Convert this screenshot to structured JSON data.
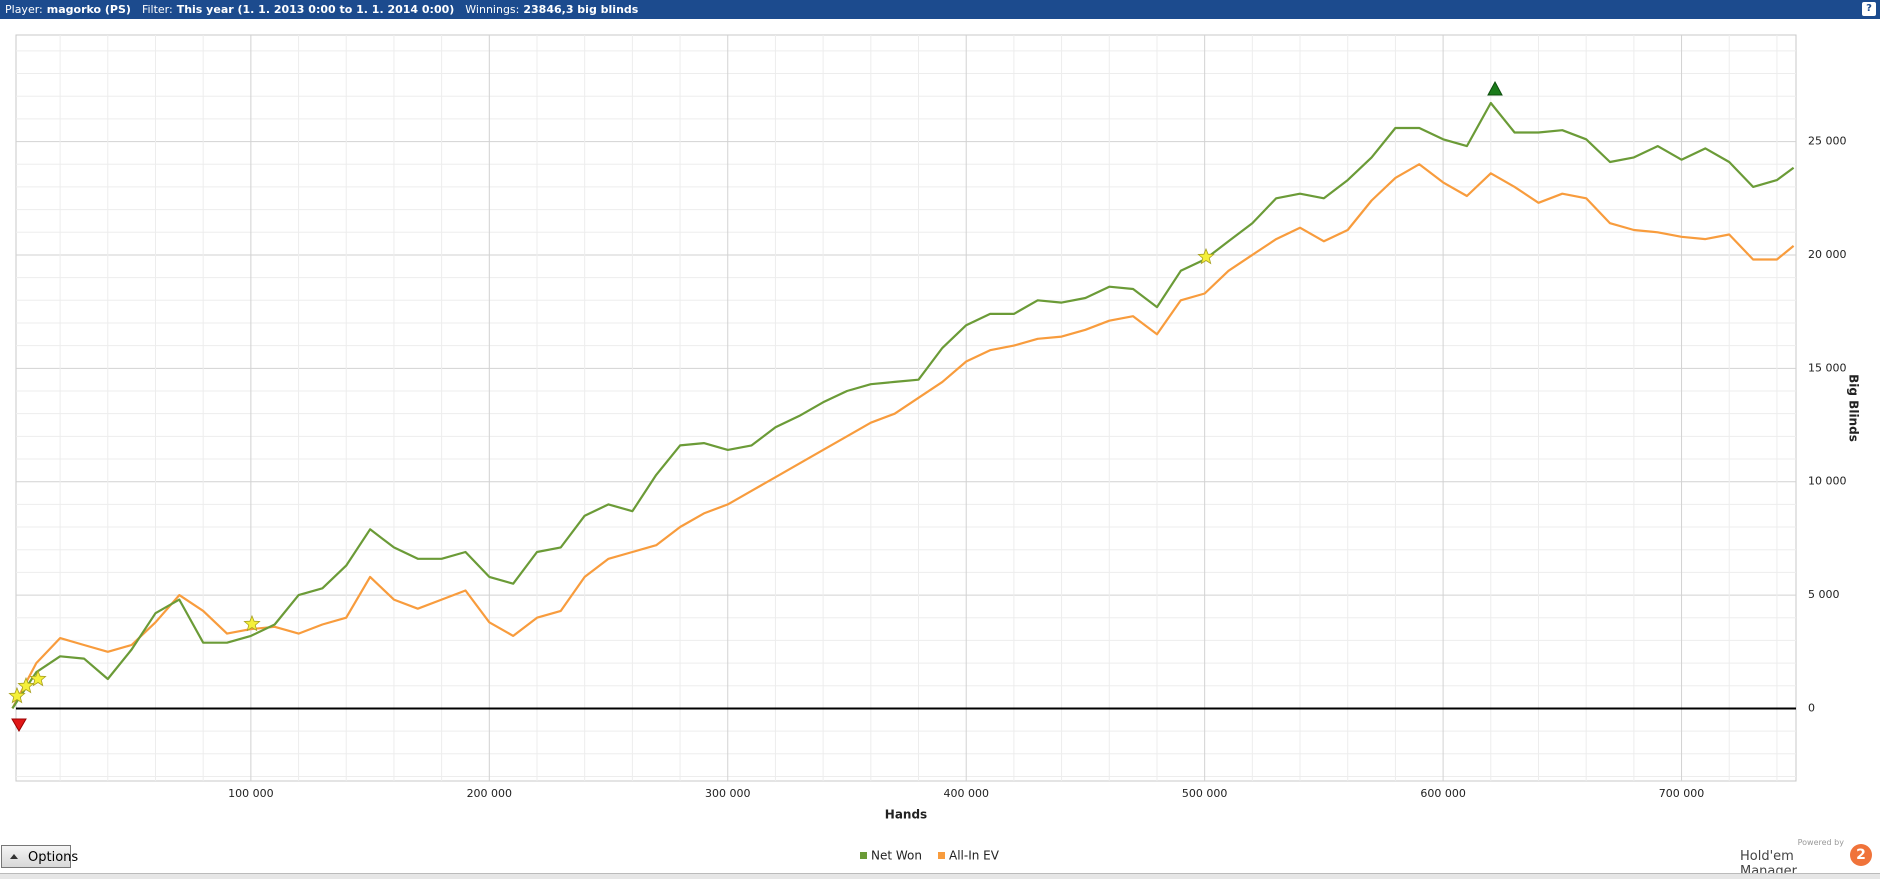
{
  "header": [
    {
      "label": "Player:",
      "value": "magorko (PS)"
    },
    {
      "label": "Filter:",
      "value": "This year (1. 1. 2013 0:00 to 1. 1. 2014 0:00)"
    },
    {
      "label": "Winnings:",
      "value": "23846,3 big blinds"
    }
  ],
  "help": "?",
  "options_button": "Options",
  "branding": {
    "powered_by": "Powered by",
    "product": "Hold'em Manager",
    "badge": "2"
  },
  "chart_data": {
    "type": "line",
    "x_label": "Hands",
    "y_label": "Big Blinds",
    "x": [
      0,
      10000,
      20000,
      30000,
      40000,
      50000,
      60000,
      70000,
      80000,
      90000,
      100000,
      110000,
      120000,
      130000,
      140000,
      150000,
      160000,
      170000,
      180000,
      190000,
      200000,
      210000,
      220000,
      230000,
      240000,
      250000,
      260000,
      270000,
      280000,
      290000,
      300000,
      310000,
      320000,
      330000,
      340000,
      350000,
      360000,
      370000,
      380000,
      390000,
      400000,
      410000,
      420000,
      430000,
      440000,
      450000,
      460000,
      470000,
      480000,
      490000,
      500000,
      510000,
      520000,
      530000,
      540000,
      550000,
      560000,
      570000,
      580000,
      590000,
      600000,
      610000,
      620000,
      630000,
      640000,
      650000,
      660000,
      670000,
      680000,
      690000,
      700000,
      710000,
      720000,
      730000,
      740000,
      747000
    ],
    "series": [
      {
        "name": "Net Won",
        "color": "#6b9b37",
        "values": [
          0,
          1600,
          2300,
          2200,
          1300,
          2600,
          4200,
          4800,
          2900,
          2900,
          3200,
          3700,
          5000,
          5300,
          6300,
          7900,
          7100,
          6600,
          6600,
          6900,
          5800,
          5500,
          6900,
          7100,
          8500,
          9000,
          8700,
          10300,
          11600,
          11700,
          11400,
          11600,
          12400,
          12900,
          13500,
          14000,
          14300,
          14400,
          14500,
          15900,
          16900,
          17400,
          17400,
          18000,
          17900,
          18100,
          18600,
          18500,
          17700,
          19300,
          19800,
          20600,
          21400,
          22500,
          22700,
          22500,
          23300,
          24300,
          25600,
          25600,
          25100,
          24800,
          26700,
          25400,
          25400,
          25500,
          25100,
          24100,
          24300,
          24800,
          24200,
          24700,
          24100,
          23000,
          23300,
          23846
        ]
      },
      {
        "name": "All-In EV",
        "color": "#f89c3d",
        "values": [
          0,
          2000,
          3100,
          2800,
          2500,
          2800,
          3800,
          5000,
          4300,
          3300,
          3500,
          3600,
          3300,
          3700,
          4000,
          5800,
          4800,
          4400,
          4800,
          5200,
          3800,
          3200,
          4000,
          4300,
          5800,
          6600,
          6900,
          7200,
          8000,
          8600,
          9000,
          9600,
          10200,
          10800,
          11400,
          12000,
          12600,
          13000,
          13700,
          14400,
          15300,
          15800,
          16000,
          16300,
          16400,
          16700,
          17100,
          17300,
          16500,
          18000,
          18300,
          19300,
          20000,
          20700,
          21200,
          20600,
          21100,
          22400,
          23400,
          24000,
          23200,
          22600,
          23600,
          23000,
          22300,
          22700,
          22500,
          21400,
          21100,
          21000,
          20800,
          20700,
          20900,
          19800,
          19800,
          20400
        ]
      }
    ],
    "xlim": [
      1500,
      748000
    ],
    "ylim": [
      -3200,
      29700
    ],
    "xticks": [
      {
        "value": 100000,
        "label": "100 000"
      },
      {
        "value": 200000,
        "label": "200 000"
      },
      {
        "value": 300000,
        "label": "300 000"
      },
      {
        "value": 400000,
        "label": "400 000"
      },
      {
        "value": 500000,
        "label": "500 000"
      },
      {
        "value": 600000,
        "label": "600 000"
      },
      {
        "value": 700000,
        "label": "700 000"
      }
    ],
    "yticks": [
      0,
      {
        "value": 5000,
        "label": "5 000"
      },
      {
        "value": 10000,
        "label": "10 000"
      },
      {
        "value": 15000,
        "label": "15 000"
      },
      {
        "value": 20000,
        "label": "20 000"
      },
      {
        "value": 25000,
        "label": "25 000"
      }
    ],
    "grid": true,
    "legend": "bottom"
  }
}
